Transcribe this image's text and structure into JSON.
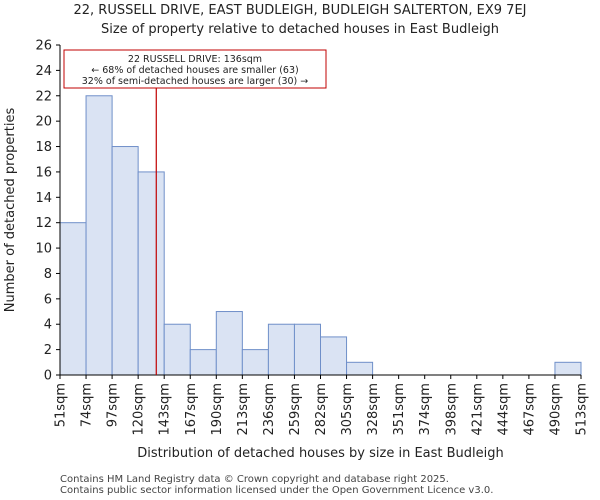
{
  "chart_data": {
    "type": "bar",
    "title": "22, RUSSELL DRIVE, EAST BUDLEIGH, BUDLEIGH SALTERTON, EX9 7EJ",
    "subtitle": "Size of property relative to detached houses in East Budleigh",
    "xlabel": "Distribution of detached houses by size in East Budleigh",
    "ylabel": "Number of detached properties",
    "bin_edges": [
      51,
      74,
      97,
      120,
      143,
      167,
      190,
      213,
      236,
      259,
      282,
      305,
      328,
      351,
      374,
      398,
      421,
      444,
      467,
      490,
      513
    ],
    "tick_labels": [
      "51sqm",
      "74sqm",
      "97sqm",
      "120sqm",
      "143sqm",
      "167sqm",
      "190sqm",
      "213sqm",
      "236sqm",
      "259sqm",
      "282sqm",
      "305sqm",
      "328sqm",
      "351sqm",
      "374sqm",
      "398sqm",
      "421sqm",
      "444sqm",
      "467sqm",
      "490sqm",
      "513sqm"
    ],
    "values": [
      12,
      22,
      18,
      16,
      4,
      2,
      5,
      2,
      4,
      4,
      3,
      1,
      0,
      0,
      0,
      0,
      0,
      0,
      0,
      1
    ],
    "ylim": [
      0,
      26
    ],
    "yticks": [
      0,
      2,
      4,
      6,
      8,
      10,
      12,
      14,
      16,
      18,
      20,
      22,
      24,
      26
    ],
    "marker": {
      "value": 136,
      "label": "22 RUSSELL DRIVE: 136sqm"
    },
    "annotation_lines": [
      "22 RUSSELL DRIVE: 136sqm",
      "← 68% of detached houses are smaller (63)",
      "32% of semi-detached houses are larger (30) →"
    ],
    "colors": {
      "bar_fill": "#dae3f3",
      "bar_stroke": "#6f8fc9",
      "marker": "#c00000",
      "axis": "#000000"
    }
  },
  "footer": {
    "line1": "Contains HM Land Registry data © Crown copyright and database right 2025.",
    "line2": "Contains public sector information licensed under the Open Government Licence v3.0."
  }
}
